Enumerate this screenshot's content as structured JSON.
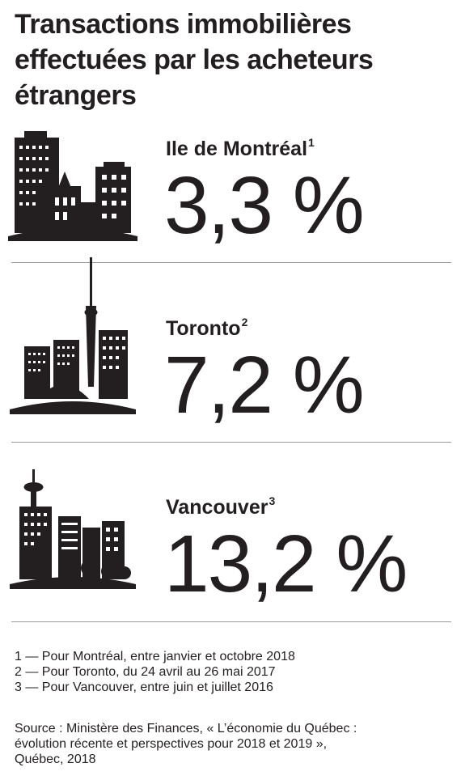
{
  "title": {
    "line1": "Transactions immobilières",
    "line2": "effectuées par les acheteurs",
    "line3": "étrangers"
  },
  "chart_data": {
    "type": "table",
    "unit": "%",
    "rows": [
      {
        "city": "Ile de Montréal",
        "note": "1",
        "value": 3.3,
        "display": "3,3 %"
      },
      {
        "city": "Toronto",
        "note": "2",
        "value": 7.2,
        "display": "7,2 %"
      },
      {
        "city": "Vancouver",
        "note": "3",
        "value": 13.2,
        "display": "13,2 %"
      }
    ]
  },
  "icons": {
    "montreal": "montreal-skyline-icon",
    "toronto": "toronto-skyline-icon",
    "vancouver": "vancouver-skyline-icon"
  },
  "colors": {
    "text": "#231f20",
    "rule": "#9a9a9a"
  },
  "notes": [
    "1 — Pour Montréal, entre janvier et octobre 2018",
    "2 — Pour Toronto, du 24 avril au 26 mai 2017",
    "3 — Pour Vancouver, entre juin et juillet 2016"
  ],
  "source": {
    "line1": "Source : Ministère des Finances, « L’économie du Québec :",
    "line2": "évolution récente et perspectives pour 2018 et 2019 »,",
    "line3": "Québec, 2018"
  }
}
